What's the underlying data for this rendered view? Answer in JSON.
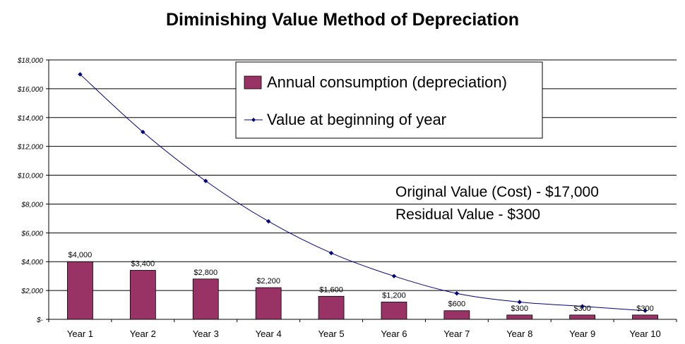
{
  "chart_data": {
    "type": "bar",
    "title": "Diminishing Value Method of Depreciation",
    "categories": [
      "Year 1",
      "Year 2",
      "Year 3",
      "Year 4",
      "Year 5",
      "Year 6",
      "Year 7",
      "Year 8",
      "Year 9",
      "Year 10"
    ],
    "series": [
      {
        "name": "Annual consumption (depreciation)",
        "type": "bar",
        "color": "#993366",
        "values": [
          4000,
          3400,
          2800,
          2200,
          1600,
          1200,
          600,
          300,
          300,
          300
        ],
        "labels": [
          "$4,000",
          "$3,400",
          "$2,800",
          "$2,200",
          "$1,600",
          "$1,200",
          "$600",
          "$300",
          "$300",
          "$300"
        ]
      },
      {
        "name": "Value at beginning of year",
        "type": "line",
        "color": "#000080",
        "marker": "diamond",
        "values": [
          17000,
          13000,
          9600,
          6800,
          4600,
          3000,
          1800,
          1200,
          900,
          600
        ]
      }
    ],
    "yticks": [
      "$-",
      "$2,000",
      "$4,000",
      "$6,000",
      "$8,000",
      "$10,000",
      "$12,000",
      "$14,000",
      "$16,000",
      "$18,000"
    ],
    "ylim": [
      0,
      18000
    ],
    "ystep": 2000,
    "grid": true,
    "legend": "top-center",
    "annotations": [
      "Original Value (Cost) - $17,000",
      "Residual Value - $300"
    ]
  }
}
